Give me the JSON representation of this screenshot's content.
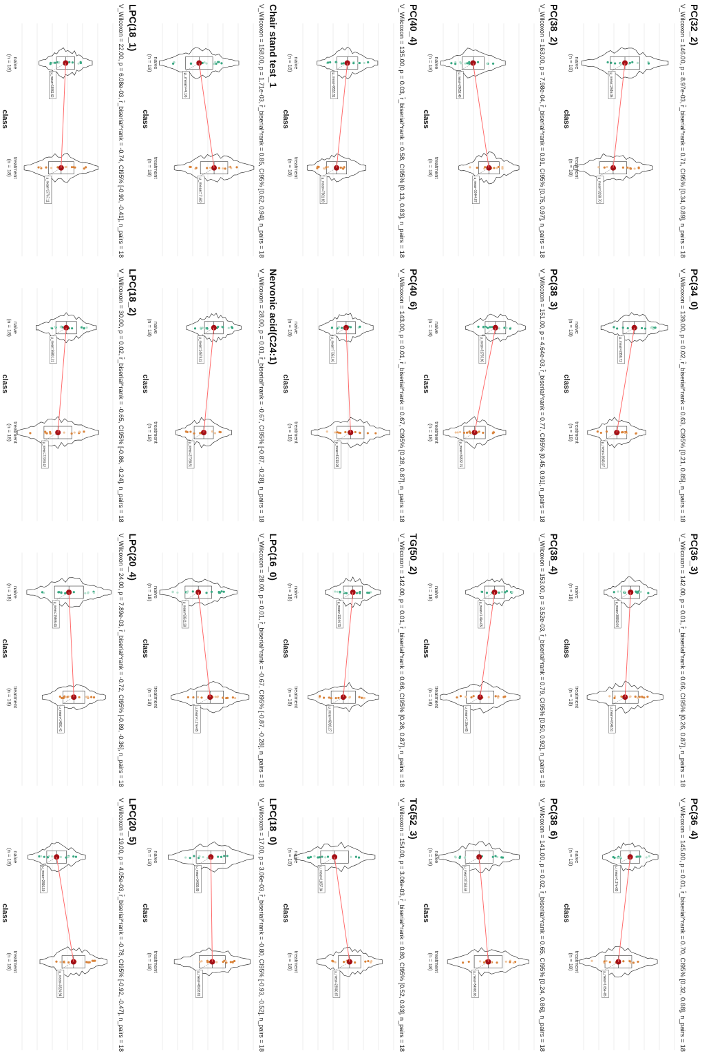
{
  "page": {
    "orientation": "rotated-90-clockwise"
  },
  "colors": {
    "naive_points": "#3aa883",
    "naive_points_light": "#b7e0cf",
    "treatment_points": "#d9833b",
    "treatment_points_light": "#f1c7a0",
    "mean_dot": "#a50f15",
    "mean_line": "#ff6b6b",
    "outline": "#333333",
    "grid": "#e6e6e6"
  },
  "common": {
    "xlabel": "class",
    "group_labels": [
      "naive",
      "treatment"
    ],
    "group_n": [
      "(n = 18)",
      "(n = 18)"
    ]
  },
  "chart_data": [
    {
      "type": "violin-box-paired",
      "title": "PC(32_2)",
      "subtitle": "V_Wilcoxon = 146.00, p = 8.97e-03, r̂_biserial^rank = 0.71, CI95% [0.34, 0.89], n_pairs = 18",
      "xlabel": "class",
      "categories": [
        "naive",
        "treatment"
      ],
      "mean_labels": [
        "μ_mean=2846.05",
        "μ_mean=3299.70"
      ],
      "grid": true
    },
    {
      "type": "violin-box-paired",
      "title": "PC(34_0)",
      "subtitle": "V_Wilcoxon = 139.00, p = 0.02, r̂_biserial^rank = 0.63, CI95% [0.21, 0.85], n_pairs = 18",
      "xlabel": "class",
      "categories": [
        "naive",
        "treatment"
      ],
      "mean_labels": [
        "μ_mean=2956.72",
        "μ_mean=1643.07"
      ],
      "grid": true
    },
    {
      "type": "violin-box-paired",
      "title": "PC(36_3)",
      "subtitle": "V_Wilcoxon = 142.00, p = 0.01, r̂_biserial^rank = 0.66, CI95% [0.26, 0.87], n_pairs = 18",
      "xlabel": "class",
      "categories": [
        "naive",
        "treatment"
      ],
      "mean_labels": [
        "μ_mean=38550.64",
        "μ_mean=47040.51"
      ],
      "grid": true
    },
    {
      "type": "violin-box-paired",
      "title": "PC(36_4)",
      "subtitle": "V_Wilcoxon = 145.00, p = 0.01, r̂_biserial^rank = 0.70, CI95% [0.32, 0.88], n_pairs = 18",
      "xlabel": "class",
      "categories": [
        "naive",
        "treatment"
      ],
      "mean_labels": [
        "μ_mean=1.37e+05",
        "μ_mean=1.65e+05"
      ],
      "grid": true
    },
    {
      "type": "violin-box-paired",
      "title": "PC(38_2)",
      "subtitle": "V_Wilcoxon = 163.00, p = 7.98e-04, r̂_biserial^rank = 0.91, CI95% [0.75, 0.97], n_pairs = 18",
      "xlabel": "class",
      "categories": [
        "naive",
        "treatment"
      ],
      "mean_labels": [
        "μ_mean=28052.48",
        "μ_mean=16444.87"
      ],
      "grid": true
    },
    {
      "type": "violin-box-paired",
      "title": "PC(38_3)",
      "subtitle": "V_Wilcoxon = 151.00, p = 4.64e-03, r̂_biserial^rank = 0.77, CI95% [0.45, 0.91], n_pairs = 18",
      "xlabel": "class",
      "categories": [
        "naive",
        "treatment"
      ],
      "mean_labels": [
        "μ_mean=51755.90",
        "μ_mean=36532.76"
      ],
      "grid": true
    },
    {
      "type": "violin-box-paired",
      "title": "PC(38_4)",
      "subtitle": "V_Wilcoxon = 153.00, p = 3.52e-03, r̂_biserial^rank = 0.79, CI95% [0.50, 0.92], n_pairs = 18",
      "xlabel": "class",
      "categories": [
        "naive",
        "treatment"
      ],
      "mean_labels": [
        "μ_mean=1.49e+05",
        "μ_mean=1.18e+05"
      ],
      "grid": true
    },
    {
      "type": "violin-box-paired",
      "title": "PC(38_6)",
      "subtitle": "V_Wilcoxon = 141.00, p = 0.02, r̂_biserial^rank = 0.65, CI95% [0.24, 0.86], n_pairs = 18",
      "xlabel": "class",
      "categories": [
        "naive",
        "treatment"
      ],
      "mean_labels": [
        "μ_mean=87163.69",
        "μ_mean=54966.96"
      ],
      "grid": true
    },
    {
      "type": "violin-box-paired",
      "title": "PC(40_4)",
      "subtitle": "V_Wilcoxon = 135.00, p = 0.03, r̂_biserial^rank = 0.58, CI95% [0.13, 0.83], n_pairs = 18",
      "xlabel": "class",
      "categories": [
        "naive",
        "treatment"
      ],
      "mean_labels": [
        "μ_mean=9832.81",
        "μ_mean=7501.69"
      ],
      "grid": true
    },
    {
      "type": "violin-box-paired",
      "title": "PC(40_6)",
      "subtitle": "V_Wilcoxon = 143.00, p = 0.01, r̂_biserial^rank = 0.67, CI95% [0.28, 0.87], n_pairs = 18",
      "xlabel": "class",
      "categories": [
        "naive",
        "treatment"
      ],
      "mean_labels": [
        "μ_mean=77352.40",
        "μ_mean=43210.98"
      ],
      "grid": true
    },
    {
      "type": "violin-box-paired",
      "title": "TG(50_2)",
      "subtitle": "V_Wilcoxon = 142.00, p = 0.01, r̂_biserial^rank = 0.66, CI95% [0.26, 0.87], n_pairs = 18",
      "xlabel": "class",
      "categories": [
        "naive",
        "treatment"
      ],
      "mean_labels": [
        "μ_mean=13244.70",
        "μ_mean=6918.27"
      ],
      "grid": true
    },
    {
      "type": "violin-box-paired",
      "title": "TG(52_3)",
      "subtitle": "V_Wilcoxon = 154.00, p = 3.06e-03, r̂_biserial^rank = 0.80, CI95% [0.52, 0.93], n_pairs = 18",
      "xlabel": "class",
      "categories": [
        "naive",
        "treatment"
      ],
      "mean_labels": [
        "μ_mean=11057.84",
        "μ_mean=23500.87"
      ],
      "grid": true
    },
    {
      "type": "violin-box-paired",
      "title": "Chair stand test_1",
      "subtitle": "V_Wilcoxon = 158.00, p = 1.71e-03, r̂_biserial^rank = 0.85, CI95% [0.62, 0.94], n_pairs = 18",
      "xlabel": "class",
      "categories": [
        "naive",
        "treatment"
      ],
      "mean_labels": [
        "μ_mean=4.16",
        "μ_mean=7.60"
      ],
      "grid": true
    },
    {
      "type": "violin-box-paired",
      "title": "Nervonic acid(C24:1)",
      "subtitle": "V_Wilcoxon = 28.00, p = 0.01, r̂_biserial^rank = -0.67, CI95% [-0.87, -0.28], n_pairs = 18",
      "xlabel": "class",
      "categories": [
        "naive",
        "treatment"
      ],
      "mean_labels": [
        "μ_mean=24678.32",
        "μ_mean=27768.81"
      ],
      "grid": true
    },
    {
      "type": "violin-box-paired",
      "title": "LPC(16_0)",
      "subtitle": "V_Wilcoxon = 28.00, p = 0.01, r̂_biserial^rank = -0.67, CI95% [-0.87, -0.28], n_pairs = 18",
      "xlabel": "class",
      "categories": [
        "naive",
        "treatment"
      ],
      "mean_labels": [
        "μ_mean=93511.28",
        "μ_mean=1.27e+05"
      ],
      "grid": true
    },
    {
      "type": "violin-box-paired",
      "title": "LPC(18_0)",
      "subtitle": "V_Wilcoxon = 17.00, p = 3.06e-03, r̂_biserial^rank = -0.80, CI95% [-0.93, -0.52], n_pairs = 18",
      "xlabel": "class",
      "categories": [
        "naive",
        "treatment"
      ],
      "mean_labels": [
        "μ_mean=34905.80",
        "μ_mean=45918.81"
      ],
      "grid": true
    },
    {
      "type": "violin-box-paired",
      "title": "LPC(18_1)",
      "subtitle": "V_Wilcoxon = 22.00, p = 6.08e-03, r̂_biserial^rank = -0.74, CI95% [-0.90, -0.41], n_pairs = 18",
      "xlabel": "class",
      "categories": [
        "naive",
        "treatment"
      ],
      "mean_labels": [
        "μ_mean=18861.62",
        "μ_mean=27767.11"
      ],
      "grid": true
    },
    {
      "type": "violin-box-paired",
      "title": "LPC(18_2)",
      "subtitle": "V_Wilcoxon = 30.00, p = 0.02, r̂_biserial^rank = -0.65, CI95% [-0.86, -0.24], n_pairs = 18",
      "xlabel": "class",
      "categories": [
        "naive",
        "treatment"
      ],
      "mean_labels": [
        "μ_mean=58801.31",
        "μ_mean=72393.42"
      ],
      "grid": true
    },
    {
      "type": "violin-box-paired",
      "title": "LPC(20_4)",
      "subtitle": "V_Wilcoxon = 24.00, p = 7.89e-03, r̂_biserial^rank = -0.72, CI95% [-0.89, -0.36], n_pairs = 18",
      "xlabel": "class",
      "categories": [
        "naive",
        "treatment"
      ],
      "mean_labels": [
        "μ_mean=15866.40",
        "μ_mean=14801.41"
      ],
      "grid": true
    },
    {
      "type": "violin-box-paired",
      "title": "LPC(20_5)",
      "subtitle": "V_Wilcoxon = 19.00, p = 4.05e-03, r̂_biserial^rank = -0.78, CI95% [-0.92, -0.47], n_pairs = 18",
      "xlabel": "class",
      "categories": [
        "naive",
        "treatment"
      ],
      "mean_labels": [
        "μ_mean=2866.59",
        "μ_mean=3524.94"
      ],
      "grid": true
    }
  ]
}
